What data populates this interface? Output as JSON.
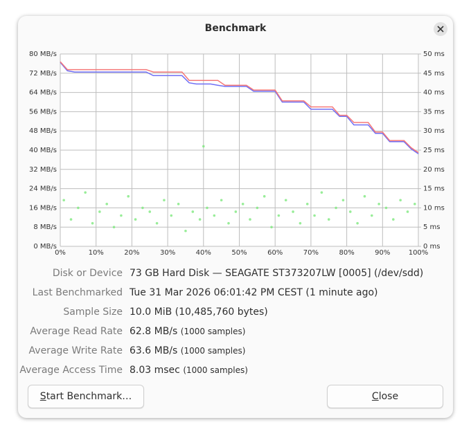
{
  "window": {
    "title": "Benchmark"
  },
  "chart_data": {
    "type": "line",
    "x": [
      0,
      2,
      4,
      6,
      8,
      10,
      12,
      14,
      16,
      18,
      20,
      22,
      24,
      26,
      28,
      30,
      32,
      34,
      36,
      38,
      40,
      42,
      44,
      46,
      48,
      50,
      52,
      54,
      56,
      58,
      60,
      62,
      64,
      66,
      68,
      70,
      72,
      74,
      76,
      78,
      80,
      82,
      84,
      86,
      88,
      90,
      92,
      94,
      96,
      98,
      100
    ],
    "xlim": [
      0,
      100
    ],
    "xticks": [
      {
        "value": 0,
        "label": "0%"
      },
      {
        "value": 10,
        "label": "10%"
      },
      {
        "value": 20,
        "label": "20%"
      },
      {
        "value": 30,
        "label": "30%"
      },
      {
        "value": 40,
        "label": "40%"
      },
      {
        "value": 50,
        "label": "50%"
      },
      {
        "value": 60,
        "label": "60%"
      },
      {
        "value": 70,
        "label": "70%"
      },
      {
        "value": 80,
        "label": "80%"
      },
      {
        "value": 90,
        "label": "90%"
      },
      {
        "value": 100,
        "label": "100%"
      }
    ],
    "ylim": [
      0,
      80
    ],
    "yticks": [
      {
        "value": 0,
        "label": "0 MB/s"
      },
      {
        "value": 8,
        "label": "8 MB/s"
      },
      {
        "value": 16,
        "label": "16 MB/s"
      },
      {
        "value": 24,
        "label": "24 MB/s"
      },
      {
        "value": 32,
        "label": "32 MB/s"
      },
      {
        "value": 40,
        "label": "40 MB/s"
      },
      {
        "value": 48,
        "label": "48 MB/s"
      },
      {
        "value": 56,
        "label": "56 MB/s"
      },
      {
        "value": 64,
        "label": "64 MB/s"
      },
      {
        "value": 72,
        "label": "72 MB/s"
      },
      {
        "value": 80,
        "label": "80 MB/s"
      }
    ],
    "y2lim": [
      0,
      50
    ],
    "y2ticks": [
      {
        "value": 0,
        "label": "0 ms"
      },
      {
        "value": 5,
        "label": "5 ms"
      },
      {
        "value": 10,
        "label": "10 ms"
      },
      {
        "value": 15,
        "label": "15 ms"
      },
      {
        "value": 20,
        "label": "20 ms"
      },
      {
        "value": 25,
        "label": "25 ms"
      },
      {
        "value": 30,
        "label": "30 ms"
      },
      {
        "value": 35,
        "label": "35 ms"
      },
      {
        "value": 40,
        "label": "40 ms"
      },
      {
        "value": 45,
        "label": "45 ms"
      },
      {
        "value": 50,
        "label": "50 ms"
      }
    ],
    "grid": true,
    "series": [
      {
        "color": "#6f6ff5",
        "values": [
          76.5,
          73,
          72.5,
          72.5,
          72.5,
          72.5,
          72.5,
          72.5,
          72.5,
          72.5,
          72.5,
          72.5,
          72.5,
          71,
          71,
          71,
          71,
          71,
          68,
          67.5,
          67.5,
          67.5,
          67,
          66.5,
          66.5,
          66.5,
          66.5,
          64.5,
          64.5,
          64.5,
          64.5,
          60,
          60,
          60,
          60,
          57,
          57,
          57,
          57,
          54,
          54,
          50.5,
          50.5,
          50.5,
          47,
          47,
          43.5,
          43.5,
          43.5,
          40.5,
          38.5
        ]
      },
      {
        "color": "#f57878",
        "values": [
          76.8,
          73.5,
          73.5,
          73.5,
          73.5,
          73.5,
          73.5,
          73.5,
          73.5,
          73.5,
          73.5,
          73.5,
          73.5,
          72.5,
          72.5,
          72.5,
          72.5,
          72.5,
          69,
          69,
          69,
          69,
          69,
          67,
          67,
          67,
          67,
          65,
          65,
          65,
          65,
          60.5,
          60.5,
          60.5,
          60.5,
          58,
          58,
          58,
          58,
          54.5,
          54.5,
          51.5,
          51.5,
          51.5,
          47.5,
          47.5,
          44,
          44,
          44,
          41,
          39
        ]
      },
      {
        "type": "scatter",
        "color": "#7ee87e",
        "axis": "y2",
        "x": [
          1,
          3,
          5,
          7,
          9,
          11,
          13,
          15,
          17,
          19,
          21,
          23,
          25,
          27,
          29,
          31,
          33,
          35,
          37,
          39,
          40,
          41,
          43,
          45,
          47,
          49,
          51,
          53,
          55,
          57,
          59,
          61,
          63,
          65,
          67,
          69,
          71,
          73,
          75,
          77,
          79,
          81,
          83,
          85,
          87,
          89,
          91,
          93,
          95,
          97,
          99
        ],
        "values": [
          12,
          7,
          10,
          14,
          6,
          9,
          11,
          5,
          8,
          13,
          7,
          10,
          9,
          6,
          12,
          8,
          11,
          4,
          9,
          7,
          26,
          10,
          8,
          12,
          6,
          9,
          11,
          7,
          10,
          13,
          5,
          8,
          12,
          9,
          6,
          11,
          8,
          14,
          7,
          10,
          12,
          9,
          6,
          13,
          8,
          11,
          10,
          7,
          12,
          9,
          11
        ]
      }
    ]
  },
  "details": [
    {
      "label": "Disk or Device",
      "value": "73 GB Hard Disk — SEAGATE ST373207LW [0005] (/dev/sdd)"
    },
    {
      "label": "Last Benchmarked",
      "value": "Tue 31 Mar 2026 06:01:42 PM CEST (1 minute ago)"
    },
    {
      "label": "Sample Size",
      "value": "10.0 MiB (10,485,760 bytes)"
    },
    {
      "label": "Average Read Rate",
      "value": "62.8 MB/s",
      "note": "(1000 samples)"
    },
    {
      "label": "Average Write Rate",
      "value": "63.6 MB/s",
      "note": "(1000 samples)"
    },
    {
      "label": "Average Access Time",
      "value": "8.03 msec",
      "note": "(1000 samples)"
    }
  ],
  "buttons": {
    "start": "Start Benchmark…",
    "close": "Close"
  }
}
